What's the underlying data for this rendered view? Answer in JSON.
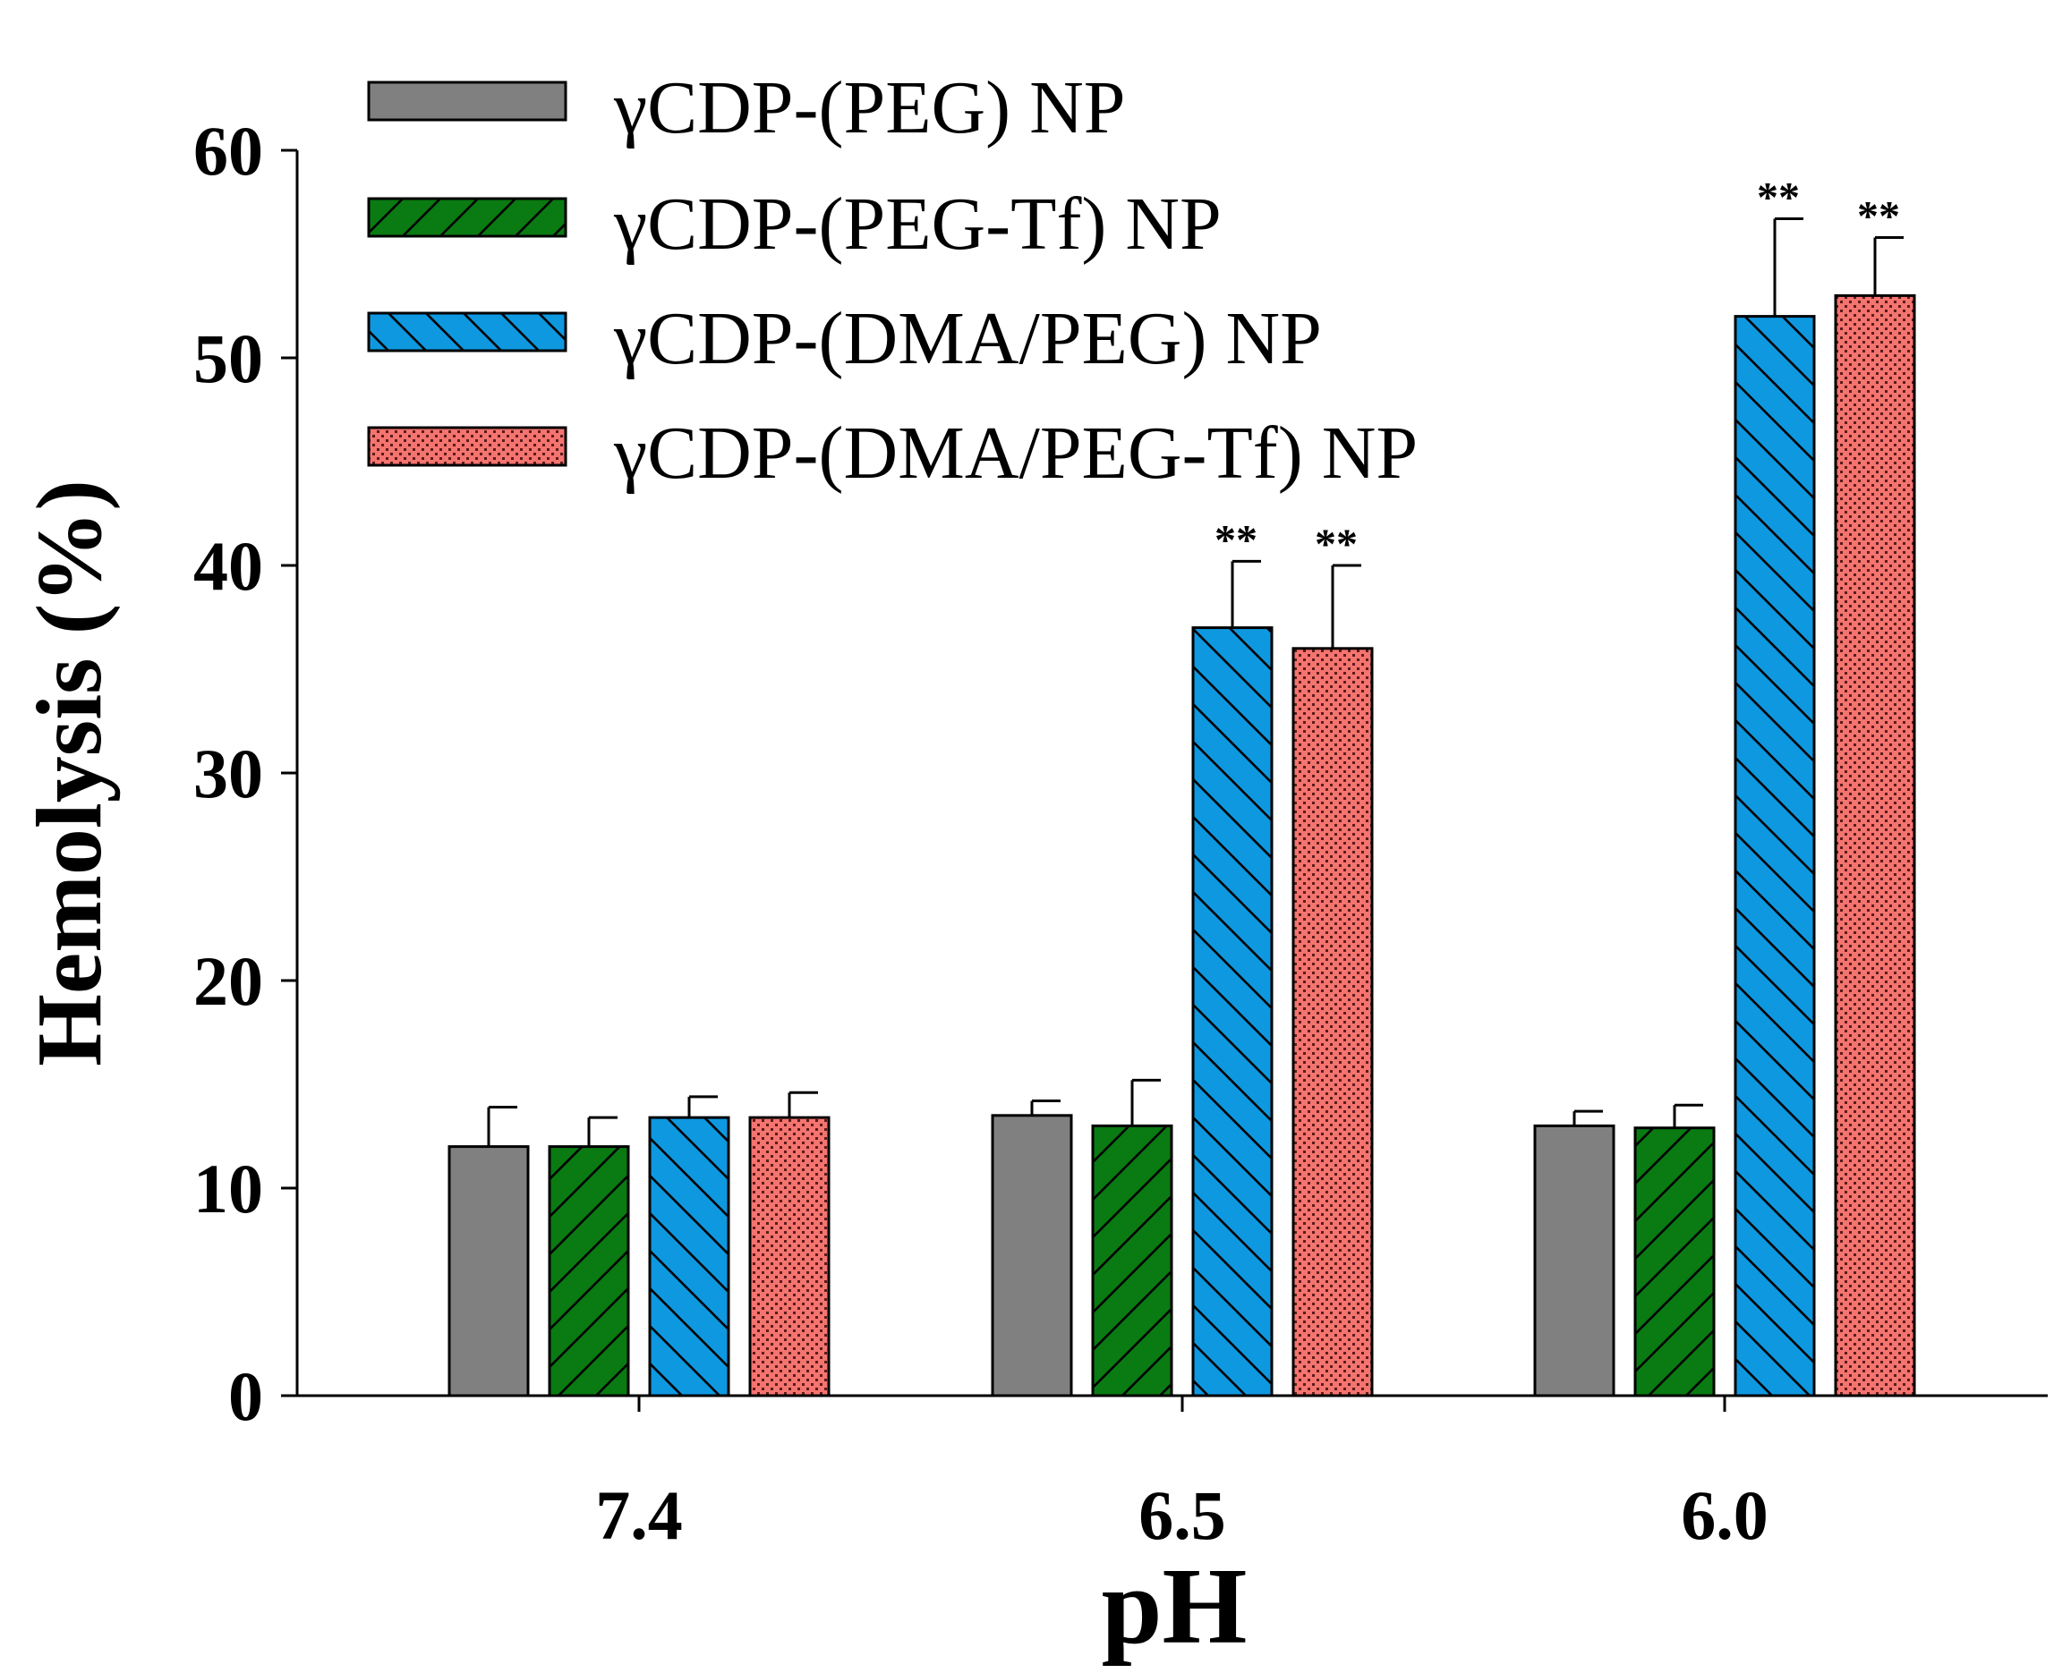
{
  "chart_data": {
    "type": "bar",
    "xlabel": "pH",
    "ylabel": "Hemolysis (%)",
    "ylim": [
      0,
      60
    ],
    "yticks": [
      0,
      10,
      20,
      30,
      40,
      50,
      60
    ],
    "categories": [
      "7.4",
      "6.5",
      "6.0"
    ],
    "legend_position": "top-left",
    "grid": false,
    "series": [
      {
        "name": "γCDP-(PEG) NP",
        "color": "#808080",
        "pattern": "solid",
        "values": [
          12.0,
          13.5,
          13.0
        ],
        "errors": [
          1.9,
          0.7,
          0.7
        ],
        "annotations": [
          "",
          "",
          ""
        ]
      },
      {
        "name": "γCDP-(PEG-Tf) NP",
        "color": "#0a7a12",
        "pattern": "diagonal-forward",
        "values": [
          12.0,
          13.0,
          12.9
        ],
        "errors": [
          1.4,
          2.2,
          1.1
        ],
        "annotations": [
          "",
          "",
          ""
        ]
      },
      {
        "name": "γCDP-(DMA/PEG) NP",
        "color": "#0e98e0",
        "pattern": "diagonal-back",
        "values": [
          13.4,
          37.0,
          52.0
        ],
        "errors": [
          1.0,
          3.2,
          4.7
        ],
        "annotations": [
          "",
          "**",
          "**"
        ]
      },
      {
        "name": "γCDP-(DMA/PEG-Tf) NP",
        "color": "#f47470",
        "pattern": "dots",
        "values": [
          13.4,
          36.0,
          53.0
        ],
        "errors": [
          1.2,
          4.0,
          2.8
        ],
        "annotations": [
          "",
          "**",
          "**"
        ]
      }
    ]
  }
}
